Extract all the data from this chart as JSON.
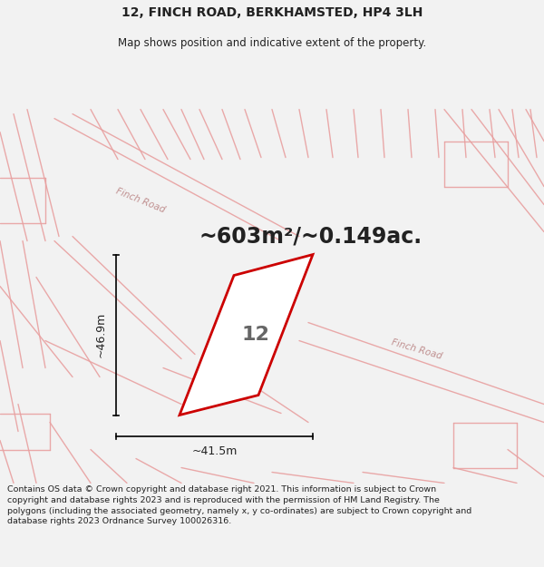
{
  "title_line1": "12, FINCH ROAD, BERKHAMSTED, HP4 3LH",
  "title_line2": "Map shows position and indicative extent of the property.",
  "area_text": "~603m²/~0.149ac.",
  "dim_vertical": "~46.9m",
  "dim_horizontal": "~41.5m",
  "property_label": "12",
  "road_label1": "Finch Road",
  "road_label2": "Finch Road",
  "footer_text": "Contains OS data © Crown copyright and database right 2021. This information is subject to Crown copyright and database rights 2023 and is reproduced with the permission of HM Land Registry. The polygons (including the associated geometry, namely x, y co-ordinates) are subject to Crown copyright and database rights 2023 Ordnance Survey 100026316.",
  "bg_color": "#f2f2f2",
  "map_bg_color": "#ececec",
  "street_color": "#e8a0a0",
  "property_color": "#cc0000",
  "text_color": "#222222",
  "title_fontsize": 10,
  "subtitle_fontsize": 8.5,
  "area_fontsize": 17,
  "label_fontsize": 16,
  "dim_fontsize": 9,
  "footer_fontsize": 6.8,
  "road_fontsize": 7.5
}
